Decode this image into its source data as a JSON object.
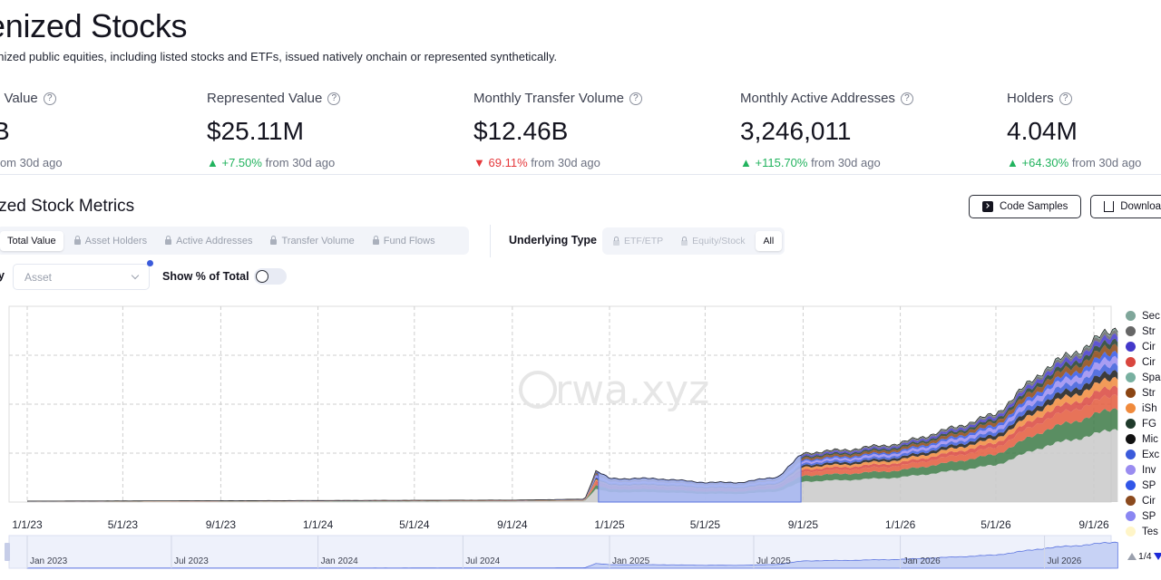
{
  "page": {
    "title": "enized Stocks",
    "subtitle": "enized public equities, including listed stocks and ETFs, issued natively onchain or represented synthetically."
  },
  "metrics": [
    {
      "label": "d Value",
      "value": "B",
      "delta": "",
      "delta_suffix": "from 30d ago",
      "direction": "none"
    },
    {
      "label": "Represented Value",
      "value": "$25.11M",
      "delta": "+7.50%",
      "delta_suffix": "from 30d ago",
      "direction": "up"
    },
    {
      "label": "Monthly Transfer Volume",
      "value": "$12.46B",
      "delta": "69.11%",
      "delta_suffix": "from 30d ago",
      "direction": "down"
    },
    {
      "label": "Monthly Active Addresses",
      "value": "3,246,011",
      "delta": "+115.70%",
      "delta_suffix": "from 30d ago",
      "direction": "up"
    },
    {
      "label": "Holders",
      "value": "4.04M",
      "delta": "+64.30%",
      "delta_suffix": "from 30d ago",
      "direction": "up"
    }
  ],
  "section": {
    "title": "ized Stock Metrics",
    "code_samples_label": "Code Samples",
    "download_label": "Downloa"
  },
  "tabs": [
    {
      "label": "Total Value",
      "active": true,
      "locked": false
    },
    {
      "label": "Asset Holders",
      "active": false,
      "locked": true
    },
    {
      "label": "Active Addresses",
      "active": false,
      "locked": true
    },
    {
      "label": "Transfer Volume",
      "active": false,
      "locked": true
    },
    {
      "label": "Fund Flows",
      "active": false,
      "locked": true
    }
  ],
  "underlying_type": {
    "label": "Underlying Type",
    "options": [
      {
        "label": "ETF/ETP",
        "active": false,
        "locked": true
      },
      {
        "label": "Equity/Stock",
        "active": false,
        "locked": true
      },
      {
        "label": "All",
        "active": true,
        "locked": false
      }
    ]
  },
  "group_by": {
    "label": "y",
    "value": "Asset"
  },
  "show_percent": {
    "label": "Show % of Total",
    "on": false
  },
  "colors": {
    "up": "#22b35e",
    "down": "#e5383b",
    "accent": "#3b5bdb"
  },
  "chart_data": {
    "type": "area",
    "stacked": true,
    "watermark": "rwa.xyz",
    "x_ticks": [
      "1/1/23",
      "5/1/23",
      "9/1/23",
      "1/1/24",
      "5/1/24",
      "9/1/24",
      "1/1/25",
      "5/1/25",
      "9/1/25",
      "1/1/26",
      "5/1/26",
      "9/1/26"
    ],
    "navigator_ticks": [
      "Jan 2023",
      "Jul 2023",
      "Jan 2024",
      "Jul 2024",
      "Jan 2025",
      "Jul 2025",
      "Jan 2026",
      "Jul 2026"
    ],
    "grid": true,
    "legend_position": "right",
    "legend": [
      {
        "name": "Sec",
        "color": "#7fa69a"
      },
      {
        "name": "Str",
        "color": "#666666"
      },
      {
        "name": "Cir",
        "color": "#4338ca"
      },
      {
        "name": "Cir",
        "color": "#d9463e"
      },
      {
        "name": "Spa",
        "color": "#78b0a0"
      },
      {
        "name": "Str",
        "color": "#8b4513"
      },
      {
        "name": "iSh",
        "color": "#f08a3c"
      },
      {
        "name": "FG",
        "color": "#1f3b2b"
      },
      {
        "name": "Mic",
        "color": "#111111"
      },
      {
        "name": "Exc",
        "color": "#3b5bdb"
      },
      {
        "name": "Inv",
        "color": "#9a8cf0"
      },
      {
        "name": "SP",
        "color": "#3156e8"
      },
      {
        "name": "Cir",
        "color": "#8b4a1e"
      },
      {
        "name": "SP",
        "color": "#8a86f2"
      },
      {
        "name": "Tes",
        "color": "#fff5c8"
      }
    ],
    "legend_page": "1/4",
    "series_shares": [
      0.42,
      0.12,
      0.08,
      0.05,
      0.05,
      0.04,
      0.04,
      0.04,
      0.03,
      0.04,
      0.03,
      0.03,
      0.02,
      0.01
    ],
    "series_colors": [
      "#c9c9c9",
      "#3d7a46",
      "#e35a3c",
      "#d9463e",
      "#f08a3c",
      "#1a1a1a",
      "#3b5bdb",
      "#9a8cf0",
      "#3156e8",
      "#8b4513",
      "#1f3b2b",
      "#4338ca",
      "#666666",
      "#7fa69a"
    ],
    "total_relative": {
      "dates": [
        "1/1/23",
        "9/1/24",
        "12/1/24",
        "12/15/24",
        "1/1/25",
        "3/1/25",
        "5/1/25",
        "6/15/25",
        "8/1/25",
        "9/1/25",
        "11/1/25",
        "1/1/26",
        "3/1/26",
        "5/1/26",
        "7/1/26",
        "9/1/26",
        "10/1/26"
      ],
      "values": [
        0.005,
        0.01,
        0.015,
        0.16,
        0.12,
        0.12,
        0.1,
        0.1,
        0.13,
        0.25,
        0.27,
        0.3,
        0.37,
        0.45,
        0.68,
        0.82,
        0.9
      ]
    }
  }
}
